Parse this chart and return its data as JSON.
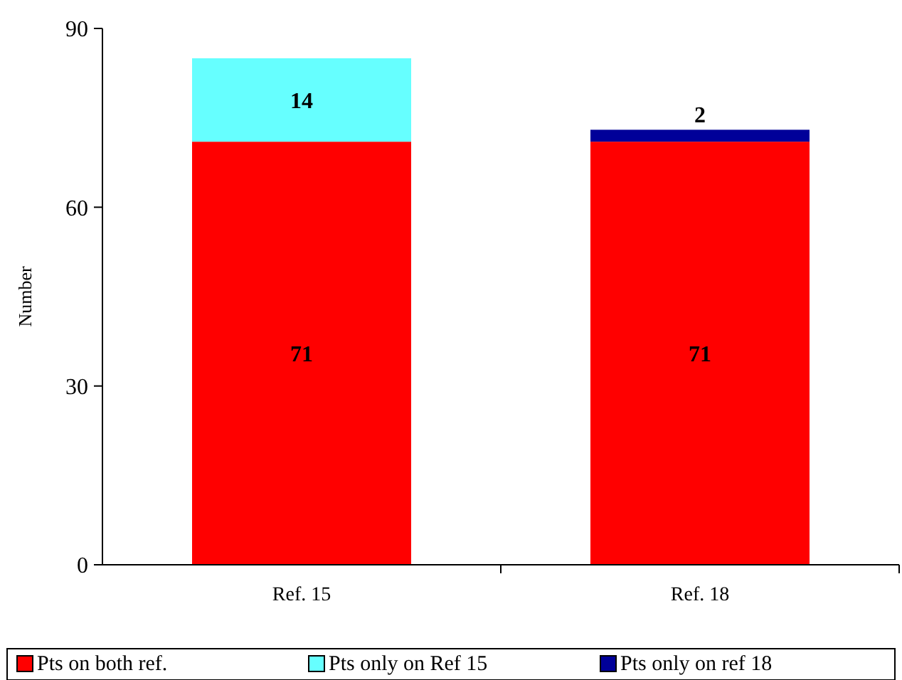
{
  "chart_data": {
    "type": "bar",
    "stacked": true,
    "ylabel": "Number",
    "categories": [
      "Ref. 15",
      "Ref. 18"
    ],
    "series": [
      {
        "name": "Pts on both ref.",
        "color": "#ff0000",
        "values": [
          71,
          71
        ],
        "value_labels": [
          "71",
          "71"
        ]
      },
      {
        "name": "Pts only on Ref 15",
        "color": "#66ffff",
        "values": [
          14,
          null
        ],
        "value_labels": [
          "14",
          null
        ]
      },
      {
        "name": "Pts only on ref 18",
        "color": "#000099",
        "values": [
          null,
          2
        ],
        "value_labels": [
          null,
          "2"
        ]
      }
    ],
    "ylim": [
      0,
      90
    ],
    "yticks": [
      0,
      30,
      60,
      90
    ],
    "legend": "bottom"
  }
}
